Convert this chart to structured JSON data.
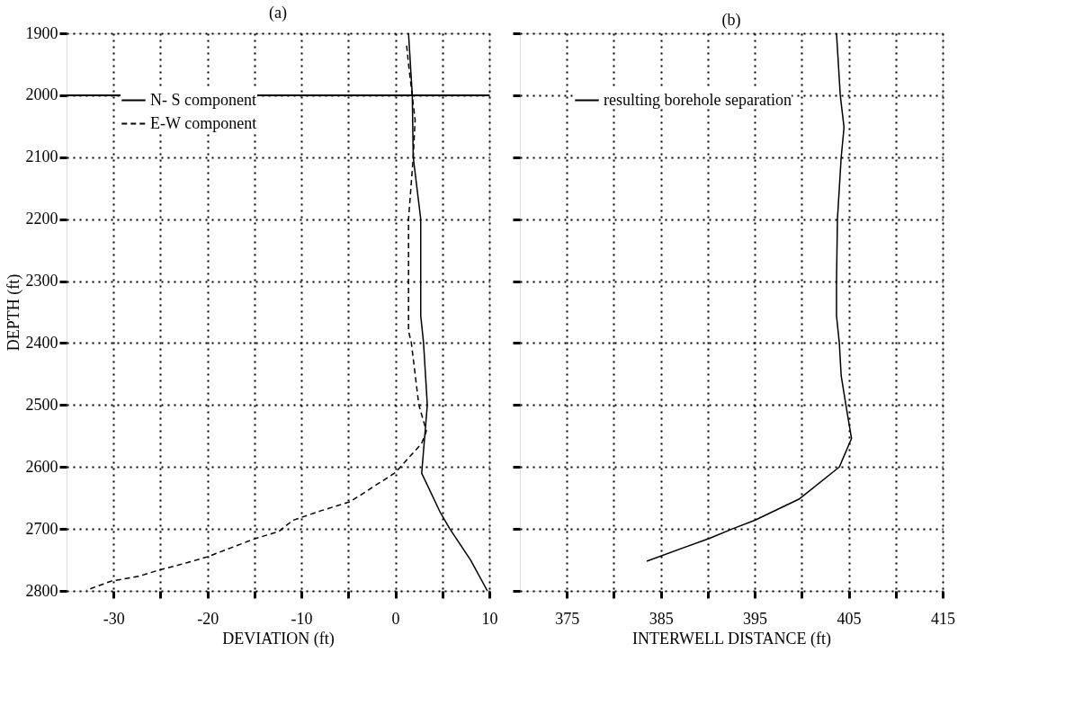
{
  "chart_data": [
    {
      "type": "line",
      "title": "(a)",
      "xlabel": "DEVIATION  (ft)",
      "ylabel": "DEPTH   (ft)",
      "xlim": [
        -35,
        10
      ],
      "xticks": [
        -30,
        {
          "value": -25,
          "label": null
        },
        -20,
        {
          "value": -15,
          "label": null
        },
        -10,
        {
          "value": -5,
          "label": null
        },
        0,
        {
          "value": 5,
          "label": null
        },
        10
      ],
      "ylim": [
        2800,
        1900
      ],
      "yticks": [
        1900,
        2000,
        2100,
        2200,
        2300,
        2400,
        2500,
        2600,
        2700,
        2800
      ],
      "grid": true,
      "legend": "top left",
      "ref_lines": [
        {
          "axis": "y",
          "value": 2000,
          "color": "#000000",
          "line_style": "solid"
        }
      ],
      "series": [
        {
          "name": "N- S component",
          "color": "#000000",
          "line_style": "solid",
          "x": [
            1.4,
            1.8,
            1.9,
            2.7,
            2.7,
            2.7,
            3.0,
            3.4,
            2.8,
            4.8,
            5.8,
            8.0,
            9.8
          ],
          "values": [
            1900,
            2000,
            2100,
            2200,
            2300,
            2356,
            2400,
            2500,
            2610,
            2674,
            2700,
            2750,
            2800
          ]
        },
        {
          "name": "E-W component",
          "color": "#000000",
          "line_style": "dashed",
          "x": [
            1.2,
            1.4,
            2.1,
            1.9,
            1.4,
            1.4,
            1.7,
            2.5,
            3.3,
            2.8,
            0.0,
            -4.8,
            -8.0,
            -10.9,
            -12.4,
            -15.0,
            -20.0,
            -22.3,
            -25.3,
            -27.2,
            -30.2,
            -32.9
          ],
          "values": [
            1920,
            1950,
            2040,
            2100,
            2200,
            2380,
            2400,
            2500,
            2542,
            2562,
            2609,
            2656,
            2671,
            2686,
            2704,
            2716,
            2745,
            2755,
            2767,
            2776,
            2784,
            2799
          ]
        }
      ]
    },
    {
      "type": "line",
      "title": "(b)",
      "xlabel": "INTERWELL DISTANCE   (ft)",
      "xlim": [
        370,
        415
      ],
      "xticks": [
        375,
        {
          "value": 380,
          "label": null
        },
        385,
        {
          "value": 390,
          "label": null
        },
        395,
        {
          "value": 400,
          "label": null
        },
        405,
        {
          "value": 410,
          "label": null
        },
        415
      ],
      "ylim": [
        2800,
        1900
      ],
      "yticks": [
        1900,
        2000,
        2100,
        2200,
        2300,
        2400,
        2500,
        2600,
        2700,
        2800
      ],
      "tick_labels": "x",
      "grid": true,
      "legend": "top left",
      "series": [
        {
          "name": "resulting borehole separation",
          "color": "#000000",
          "line_style": "solid",
          "x": [
            403.7,
            404.1,
            404.5,
            404.2,
            403.8,
            403.7,
            403.7,
            404.0,
            404.2,
            404.7,
            405.3,
            404.0,
            399.7,
            395.0,
            392.6,
            390.2,
            383.5
          ],
          "values": [
            1900,
            2000,
            2052,
            2100,
            2200,
            2300,
            2356,
            2400,
            2453,
            2500,
            2554,
            2600,
            2652,
            2686,
            2700,
            2715,
            2752
          ]
        }
      ]
    }
  ]
}
